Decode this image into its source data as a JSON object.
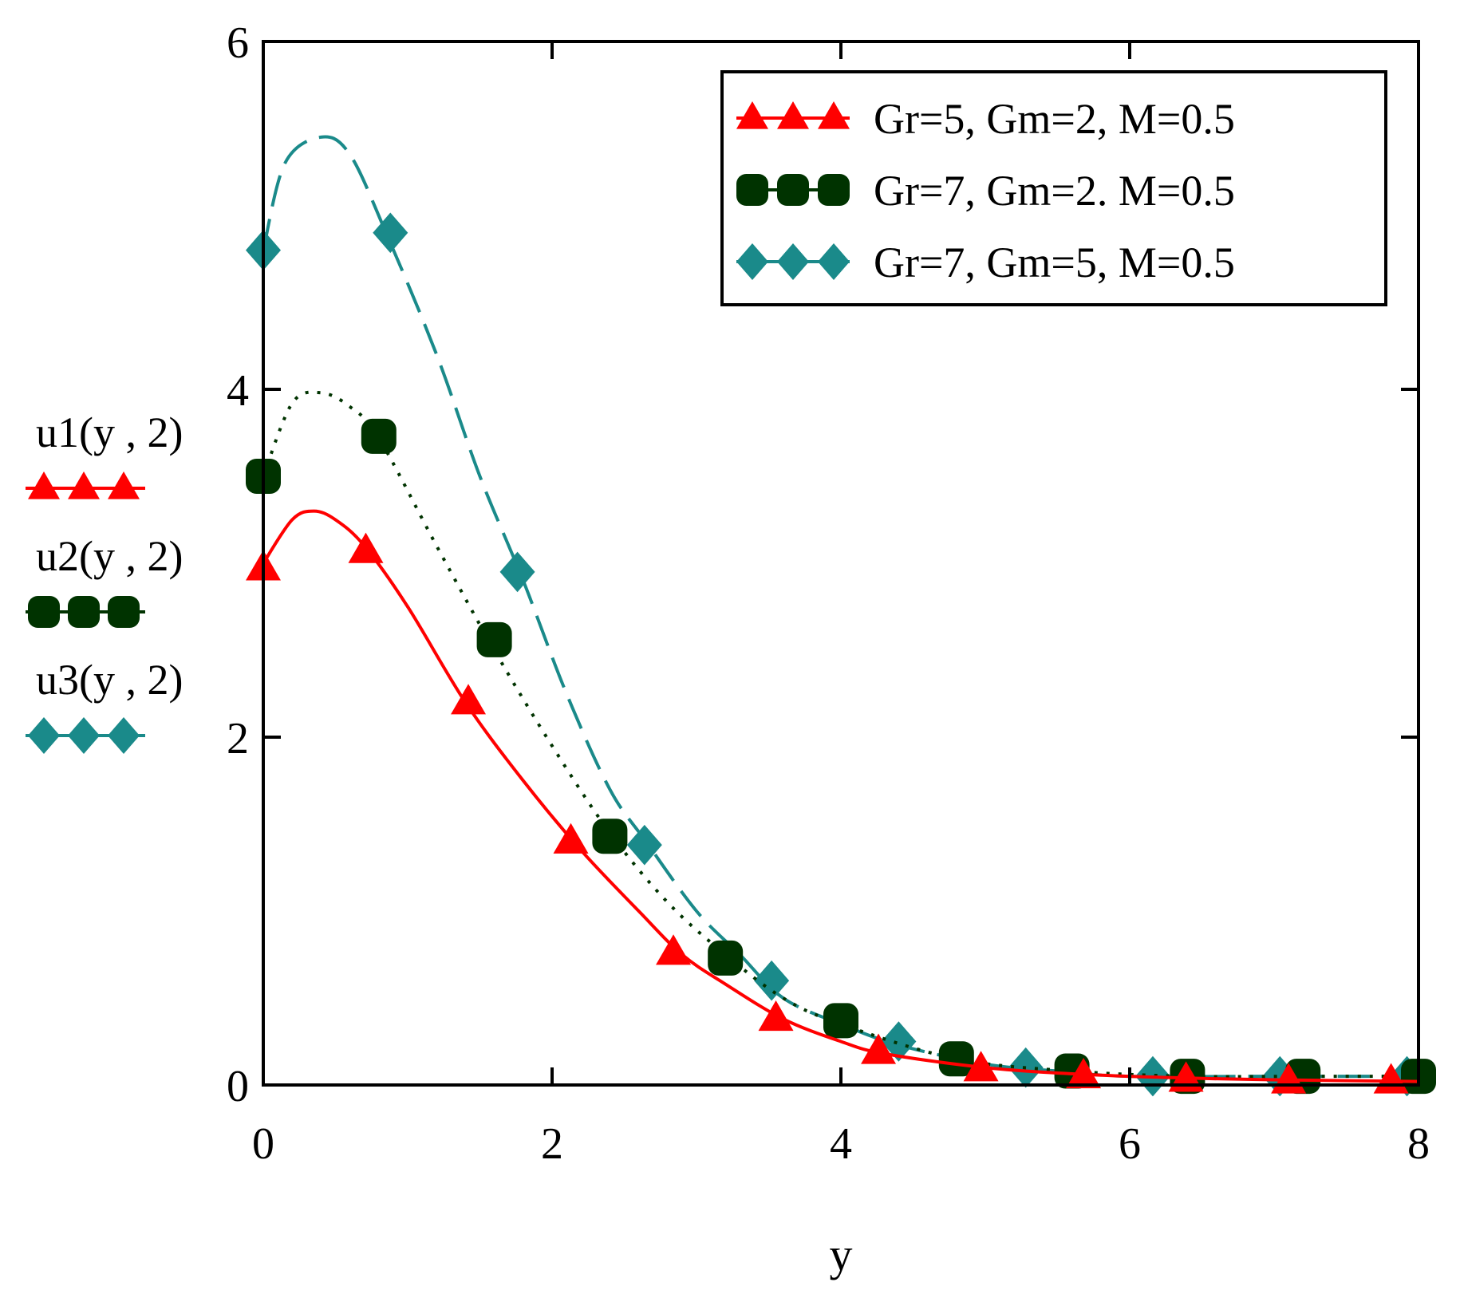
{
  "chart_data": {
    "type": "line",
    "title": "",
    "xlabel": "y",
    "ylabel": "",
    "xlim": [
      0,
      8
    ],
    "ylim": [
      0,
      6
    ],
    "xticks": [
      0,
      2,
      4,
      6,
      8
    ],
    "yticks": [
      0,
      2,
      4,
      6
    ],
    "x_tick_labels": [
      "0",
      "2",
      "4",
      "6",
      "8"
    ],
    "y_tick_labels": [
      "0",
      "2",
      "4",
      "6"
    ],
    "grid": false,
    "legend_position": "top-right",
    "series": [
      {
        "name": "Gr=5, Gm=2, M=0.5",
        "function_label": "u1(y , 2)",
        "color": "#ff0000",
        "marker": "triangle",
        "line_style": "solid",
        "x": [
          0,
          0.2,
          0.35,
          0.5,
          0.7,
          1.0,
          1.4,
          1.8,
          2.2,
          2.6,
          2.9,
          3.2,
          3.6,
          4.0,
          4.3,
          5.0,
          5.7,
          6.4,
          7.0,
          8.0
        ],
        "y": [
          3.0,
          3.25,
          3.3,
          3.25,
          3.1,
          2.75,
          2.2,
          1.75,
          1.35,
          1.0,
          0.75,
          0.58,
          0.38,
          0.25,
          0.18,
          0.1,
          0.06,
          0.04,
          0.03,
          0.02
        ],
        "marker_x": [
          0,
          0.71,
          1.42,
          2.13,
          2.84,
          3.55,
          4.26,
          4.97,
          5.68,
          6.39,
          7.1,
          7.81
        ],
        "marker_y": [
          2.97,
          3.07,
          2.2,
          1.4,
          0.76,
          0.38,
          0.19,
          0.09,
          0.05,
          0.03,
          0.02,
          0.02
        ]
      },
      {
        "name": "Gr=7, Gm=2. M=0.5",
        "function_label": "u2(y , 2)",
        "color": "#003300",
        "marker": "circle",
        "line_style": "dotted",
        "x": [
          0,
          0.2,
          0.4,
          0.6,
          0.8,
          1.2,
          1.6,
          2.0,
          2.4,
          2.8,
          3.2,
          3.6,
          4.0,
          4.8,
          5.6,
          6.4,
          7.2,
          8.0
        ],
        "y": [
          3.5,
          3.92,
          3.98,
          3.9,
          3.72,
          3.1,
          2.5,
          1.95,
          1.45,
          1.05,
          0.75,
          0.5,
          0.35,
          0.15,
          0.08,
          0.05,
          0.05,
          0.05
        ],
        "marker_x": [
          0,
          0.8,
          1.6,
          2.4,
          3.2,
          4.0,
          4.8,
          5.6,
          6.4,
          7.2,
          8.0
        ],
        "marker_y": [
          3.5,
          3.73,
          2.56,
          1.43,
          0.73,
          0.37,
          0.15,
          0.08,
          0.05,
          0.05,
          0.05
        ]
      },
      {
        "name": "Gr=7, Gm=5, M=0.5",
        "function_label": "u3(y , 2)",
        "color": "#1a8a8a",
        "marker": "diamond",
        "line_style": "dashed",
        "x": [
          0,
          0.15,
          0.4,
          0.6,
          0.85,
          1.2,
          1.5,
          1.8,
          2.1,
          2.4,
          2.65,
          3.0,
          3.3,
          3.6,
          4.0,
          4.4,
          5.0,
          5.5,
          6.0,
          7.0,
          8.0
        ],
        "y": [
          4.8,
          5.3,
          5.45,
          5.35,
          4.9,
          4.2,
          3.5,
          2.9,
          2.25,
          1.7,
          1.4,
          1.0,
          0.75,
          0.5,
          0.35,
          0.23,
          0.12,
          0.08,
          0.05,
          0.05,
          0.05
        ],
        "marker_x": [
          0,
          0.88,
          1.76,
          2.64,
          3.52,
          4.4,
          5.28,
          6.16,
          7.04,
          7.92
        ],
        "marker_y": [
          4.8,
          4.9,
          2.95,
          1.38,
          0.6,
          0.25,
          0.1,
          0.05,
          0.05,
          0.05
        ]
      }
    ]
  }
}
